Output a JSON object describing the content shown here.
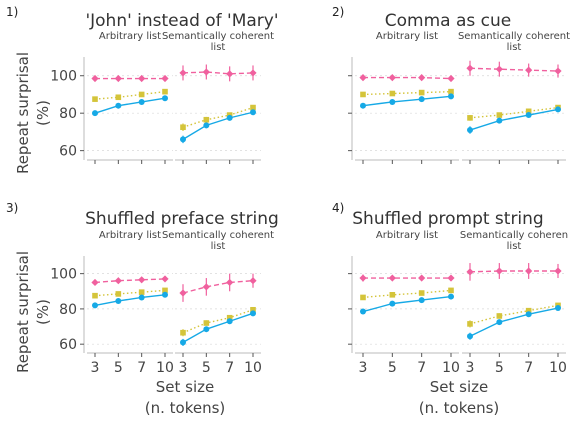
{
  "figure": {
    "ylabel": [
      "Repeat surprisal",
      "(%)"
    ],
    "xlabel": [
      "Set size",
      "(n. tokens)"
    ],
    "colors": {
      "pink": "#f0609e",
      "yellow": "#d4c43a",
      "blue": "#16a9e6"
    }
  },
  "chart_data": [
    {
      "type": "line",
      "panel_number": "1)",
      "title": "'John' instead of 'Mary'",
      "subpanels": [
        {
          "label": "Arbitrary list",
          "x": [
            "3",
            "5",
            "7",
            "10"
          ],
          "series": [
            {
              "color": "pink",
              "style": "dashed",
              "marker": "diamond",
              "values": [
                98.5,
                98.5,
                98.5,
                98.5
              ],
              "err": [
                1.5,
                1.2,
                1.2,
                1.2
              ]
            },
            {
              "color": "yellow",
              "style": "dotted",
              "marker": "square",
              "values": [
                87.5,
                88.5,
                90,
                91.5
              ],
              "err": [
                0.8,
                0.8,
                0.8,
                0.8
              ]
            },
            {
              "color": "blue",
              "style": "solid",
              "marker": "circle",
              "values": [
                80,
                84,
                86,
                88
              ],
              "err": [
                1,
                1,
                1,
                1
              ]
            }
          ]
        },
        {
          "label": "Semantically coherent list",
          "label_lines": [
            "Semantically coherent",
            "list"
          ],
          "x": [
            "3",
            "5",
            "7",
            "10"
          ],
          "series": [
            {
              "color": "pink",
              "style": "dashed",
              "marker": "diamond",
              "values": [
                101.5,
                102,
                101,
                101.5
              ],
              "err": [
                4,
                4,
                4,
                4
              ]
            },
            {
              "color": "yellow",
              "style": "dotted",
              "marker": "square",
              "values": [
                72.5,
                76.5,
                79,
                83
              ],
              "err": [
                2,
                1.5,
                1,
                1
              ]
            },
            {
              "color": "blue",
              "style": "solid",
              "marker": "circle",
              "values": [
                66,
                73.5,
                77.5,
                80.5
              ],
              "err": [
                2,
                1.5,
                1.2,
                1.2
              ]
            }
          ]
        }
      ],
      "yticks": [
        "60",
        "80",
        "100"
      ],
      "ylim": [
        55,
        110
      ]
    },
    {
      "type": "line",
      "panel_number": "2)",
      "title": "Comma as cue",
      "subpanels": [
        {
          "label": "Arbitrary list",
          "x": [
            "3",
            "5",
            "7",
            "10"
          ],
          "series": [
            {
              "color": "pink",
              "style": "dashed",
              "marker": "diamond",
              "values": [
                99,
                99,
                99,
                98.5
              ],
              "err": [
                1,
                1,
                1,
                1
              ]
            },
            {
              "color": "yellow",
              "style": "dotted",
              "marker": "square",
              "values": [
                90,
                90.5,
                91,
                91.5
              ],
              "err": [
                0.8,
                0.8,
                0.8,
                0.8
              ]
            },
            {
              "color": "blue",
              "style": "solid",
              "marker": "circle",
              "values": [
                84,
                86,
                87.5,
                89
              ],
              "err": [
                1,
                1,
                1,
                1
              ]
            }
          ]
        },
        {
          "label": "Semantically coherent list",
          "label_lines": [
            "Semantically coherent",
            "list"
          ],
          "x": [
            "3",
            "5",
            "7",
            "10"
          ],
          "series": [
            {
              "color": "pink",
              "style": "dashed",
              "marker": "diamond",
              "values": [
                104,
                103.5,
                103,
                102.5
              ],
              "err": [
                4,
                4,
                3.5,
                3.5
              ]
            },
            {
              "color": "yellow",
              "style": "dotted",
              "marker": "square",
              "values": [
                77.5,
                79,
                81,
                83
              ],
              "err": [
                1.5,
                1.2,
                1,
                1
              ]
            },
            {
              "color": "blue",
              "style": "solid",
              "marker": "circle",
              "values": [
                71,
                76,
                79,
                82
              ],
              "err": [
                2,
                1.5,
                1.2,
                1
              ]
            }
          ]
        }
      ],
      "yticks": [
        "60",
        "80",
        "100"
      ],
      "ylim": [
        55,
        110
      ]
    },
    {
      "type": "line",
      "panel_number": "3)",
      "title": "Shuffled preface string",
      "subpanels": [
        {
          "label": "Arbitrary list",
          "x": [
            "3",
            "5",
            "7",
            "10"
          ],
          "series": [
            {
              "color": "pink",
              "style": "dashed",
              "marker": "diamond",
              "values": [
                95,
                96,
                96.5,
                97
              ],
              "err": [
                1.2,
                1.2,
                1.2,
                1.2
              ]
            },
            {
              "color": "yellow",
              "style": "dotted",
              "marker": "square",
              "values": [
                87.5,
                88.5,
                89.5,
                90.5
              ],
              "err": [
                0.8,
                0.8,
                0.8,
                0.8
              ]
            },
            {
              "color": "blue",
              "style": "solid",
              "marker": "circle",
              "values": [
                82,
                84.5,
                86.5,
                88
              ],
              "err": [
                1,
                1,
                1,
                1
              ]
            }
          ]
        },
        {
          "label": "Semantically coherent list",
          "label_lines": [
            "Semantically coherent",
            "list"
          ],
          "x": [
            "3",
            "5",
            "7",
            "10"
          ],
          "series": [
            {
              "color": "pink",
              "style": "dashed",
              "marker": "diamond",
              "values": [
                89,
                92.5,
                95,
                96
              ],
              "err": [
                5,
                5,
                5,
                4
              ]
            },
            {
              "color": "yellow",
              "style": "dotted",
              "marker": "square",
              "values": [
                66.5,
                72,
                75,
                79.5
              ],
              "err": [
                2,
                1.5,
                1.2,
                1
              ]
            },
            {
              "color": "blue",
              "style": "solid",
              "marker": "circle",
              "values": [
                61,
                68.5,
                73,
                77.5
              ],
              "err": [
                2,
                1.5,
                1.2,
                1.2
              ]
            }
          ]
        }
      ],
      "yticks": [
        "60",
        "80",
        "100"
      ],
      "ylim": [
        55,
        110
      ]
    },
    {
      "type": "line",
      "panel_number": "4)",
      "title": "Shuffled prompt string",
      "subpanels": [
        {
          "label": "Arbitrary list",
          "x": [
            "3",
            "5",
            "7",
            "10"
          ],
          "series": [
            {
              "color": "pink",
              "style": "dashed",
              "marker": "diamond",
              "values": [
                97.5,
                97.5,
                97.5,
                97.5
              ],
              "err": [
                2,
                1.5,
                1.5,
                1.5
              ]
            },
            {
              "color": "yellow",
              "style": "dotted",
              "marker": "square",
              "values": [
                86.5,
                88,
                89,
                90.5
              ],
              "err": [
                0.8,
                0.8,
                0.8,
                0.8
              ]
            },
            {
              "color": "blue",
              "style": "solid",
              "marker": "circle",
              "values": [
                78.5,
                83,
                85,
                87
              ],
              "err": [
                1.2,
                1,
                1,
                1
              ]
            }
          ]
        },
        {
          "label": "Semantically coheren list",
          "label_lines": [
            "Semantically coheren",
            "list"
          ],
          "x": [
            "3",
            "5",
            "7",
            "10"
          ],
          "series": [
            {
              "color": "pink",
              "style": "dashed",
              "marker": "diamond",
              "values": [
                101,
                101.5,
                101.5,
                101.5
              ],
              "err": [
                5,
                4.5,
                4.5,
                4
              ]
            },
            {
              "color": "yellow",
              "style": "dotted",
              "marker": "square",
              "values": [
                71.5,
                76,
                79,
                82
              ],
              "err": [
                2,
                1.5,
                1,
                1
              ]
            },
            {
              "color": "blue",
              "style": "solid",
              "marker": "circle",
              "values": [
                64.5,
                72.5,
                77,
                80.5
              ],
              "err": [
                2,
                1.5,
                1.2,
                1.2
              ]
            }
          ]
        }
      ],
      "yticks": [
        "60",
        "80",
        "100"
      ],
      "ylim": [
        55,
        110
      ]
    }
  ]
}
